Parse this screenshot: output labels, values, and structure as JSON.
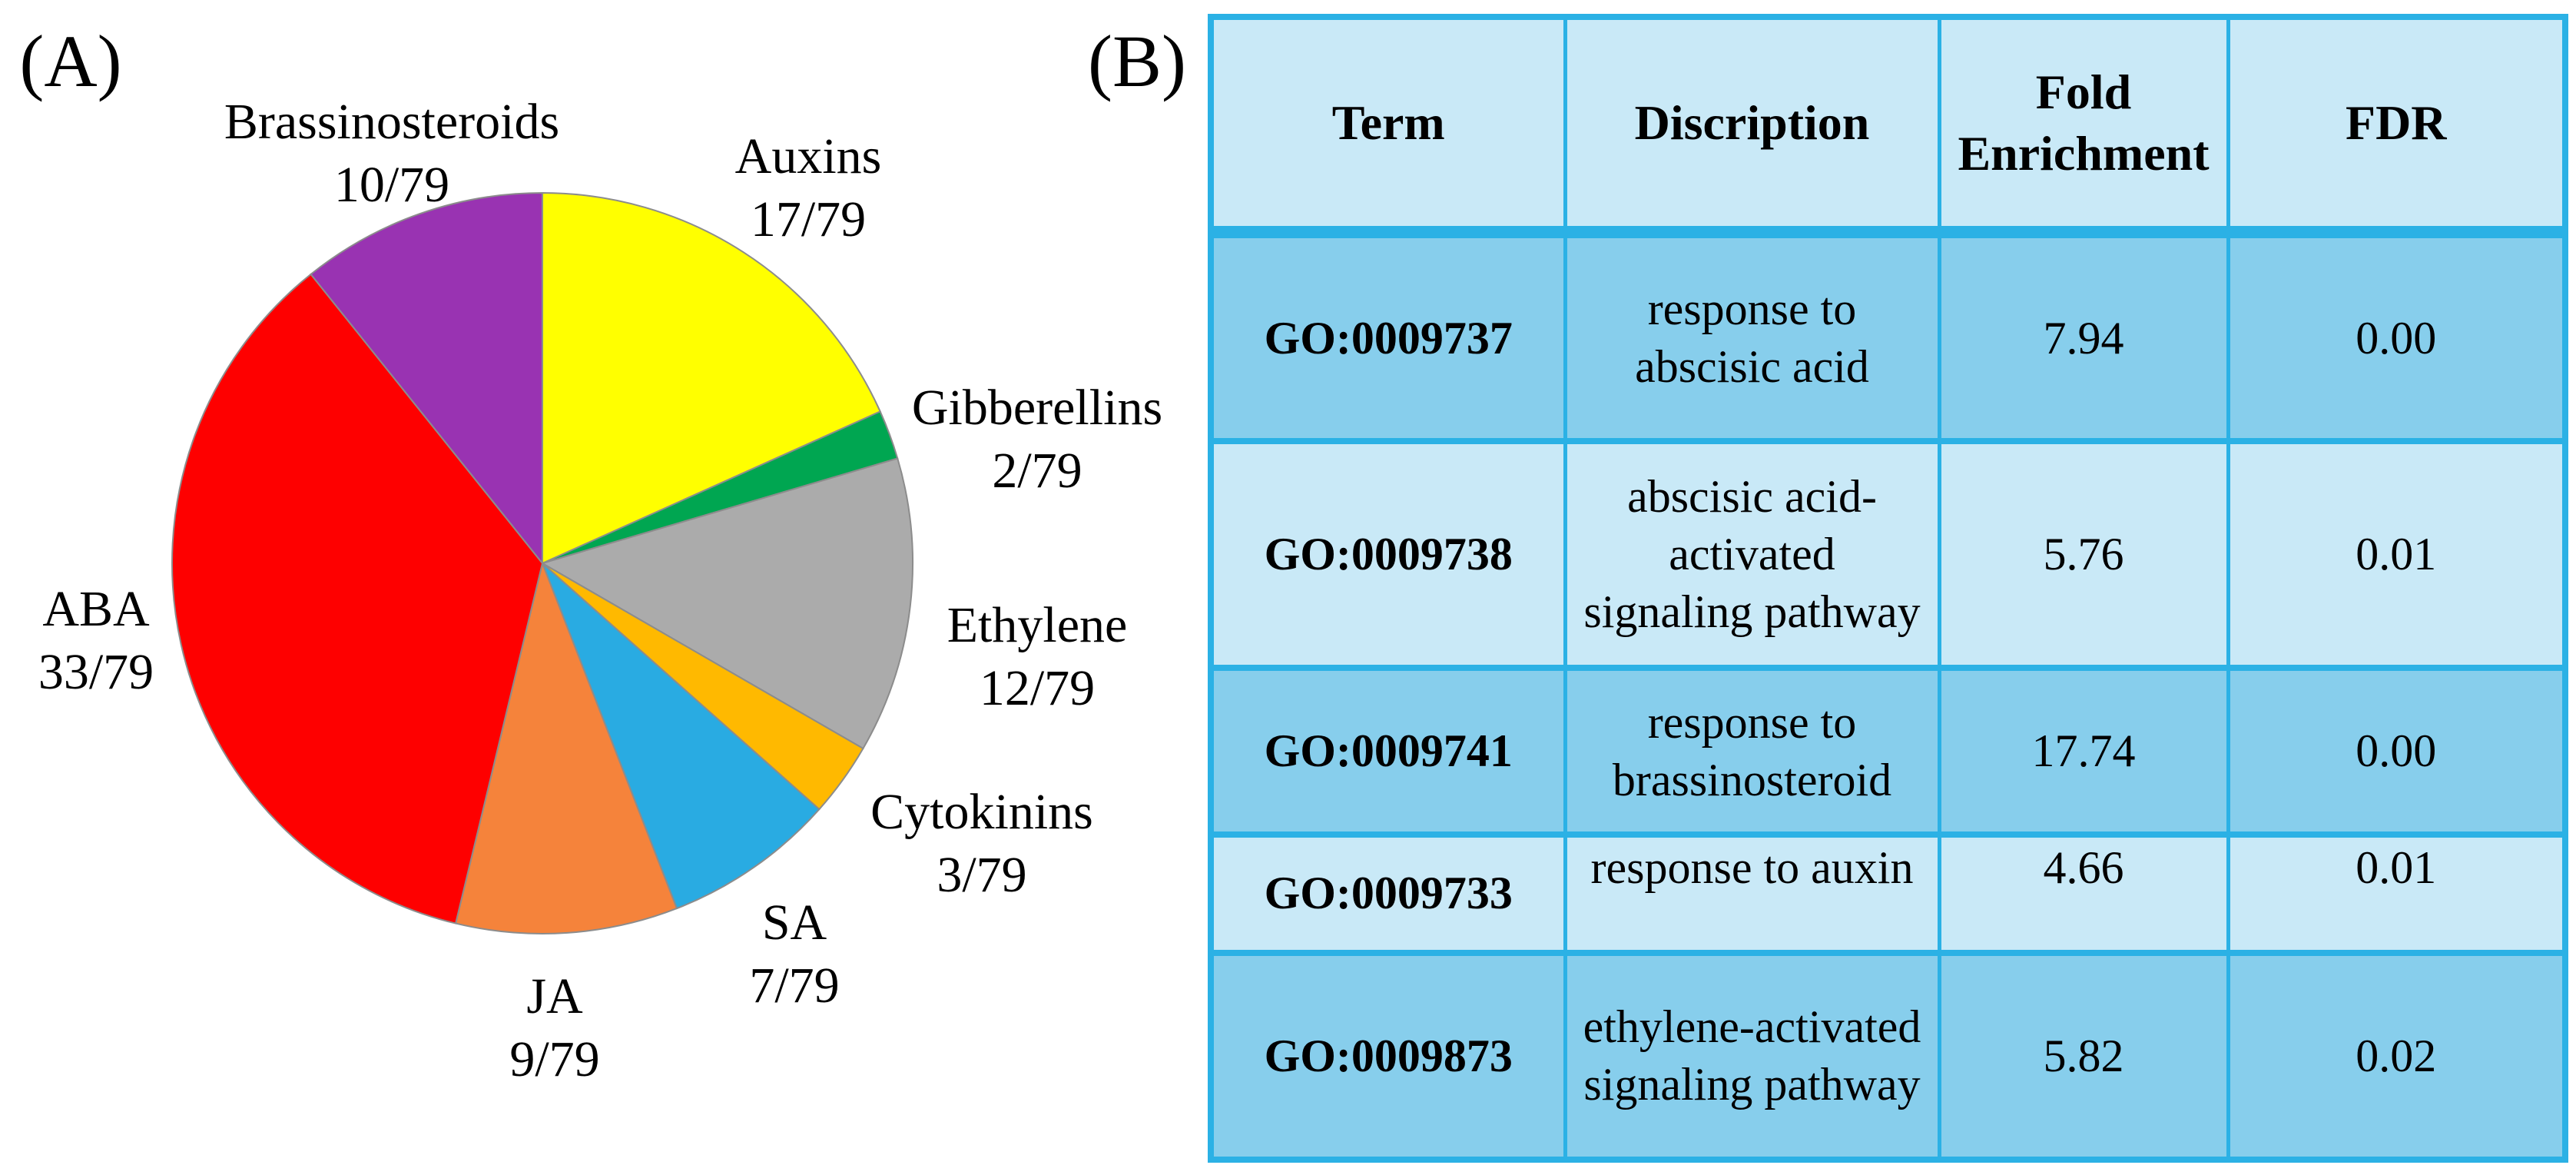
{
  "figure": {
    "panel_a_label": "(A)",
    "panel_b_label": "(B)"
  },
  "colors": {
    "table_border": "#2BB1E5",
    "table_row_dark": "#87CEEC",
    "table_row_light": "#C9E9F7",
    "pie_outline": "#8C8C8C"
  },
  "chart_data": [
    {
      "type": "pie",
      "panel": "A",
      "denominator": 79,
      "start_angle_deg": 0,
      "direction": "clockwise",
      "slices": [
        {
          "label": "Auxins",
          "value": 17,
          "fraction": "17/79",
          "color": "#FFFF00"
        },
        {
          "label": "Gibberellins",
          "value": 2,
          "fraction": "2/79",
          "color": "#00A651"
        },
        {
          "label": "Ethylene",
          "value": 12,
          "fraction": "12/79",
          "color": "#ABABAB"
        },
        {
          "label": "Cytokinins",
          "value": 3,
          "fraction": "3/79",
          "color": "#FFB900"
        },
        {
          "label": "SA",
          "value": 7,
          "fraction": "7/79",
          "color": "#29ABE2"
        },
        {
          "label": "JA",
          "value": 9,
          "fraction": "9/79",
          "color": "#F5833B"
        },
        {
          "label": "ABA",
          "value": 33,
          "fraction": "33/79",
          "color": "#FE0000"
        },
        {
          "label": "Brassinosteroids",
          "value": 10,
          "fraction": "10/79",
          "color": "#9933B2"
        }
      ]
    },
    {
      "type": "table",
      "panel": "B",
      "headers": [
        [
          "Term"
        ],
        [
          "Discription"
        ],
        [
          "Fold",
          "Enrichment"
        ],
        [
          "FDR"
        ]
      ],
      "rows": [
        {
          "term": "GO:0009737",
          "description": [
            "response to",
            "abscisic acid"
          ],
          "fold_enrichment": "7.94",
          "fdr": "0.00"
        },
        {
          "term": "GO:0009738",
          "description": [
            "abscisic acid-",
            "activated",
            "signaling pathway"
          ],
          "fold_enrichment": "5.76",
          "fdr": "0.01"
        },
        {
          "term": "GO:0009741",
          "description": [
            "response to",
            "brassinosteroid"
          ],
          "fold_enrichment": "17.74",
          "fdr": "0.00"
        },
        {
          "term": "GO:0009733",
          "description": [
            "response to auxin"
          ],
          "fold_enrichment": "4.66",
          "fdr": "0.01"
        },
        {
          "term": "GO:0009873",
          "description": [
            "ethylene-activated",
            "signaling pathway"
          ],
          "fold_enrichment": "5.82",
          "fdr": "0.02"
        }
      ]
    }
  ]
}
